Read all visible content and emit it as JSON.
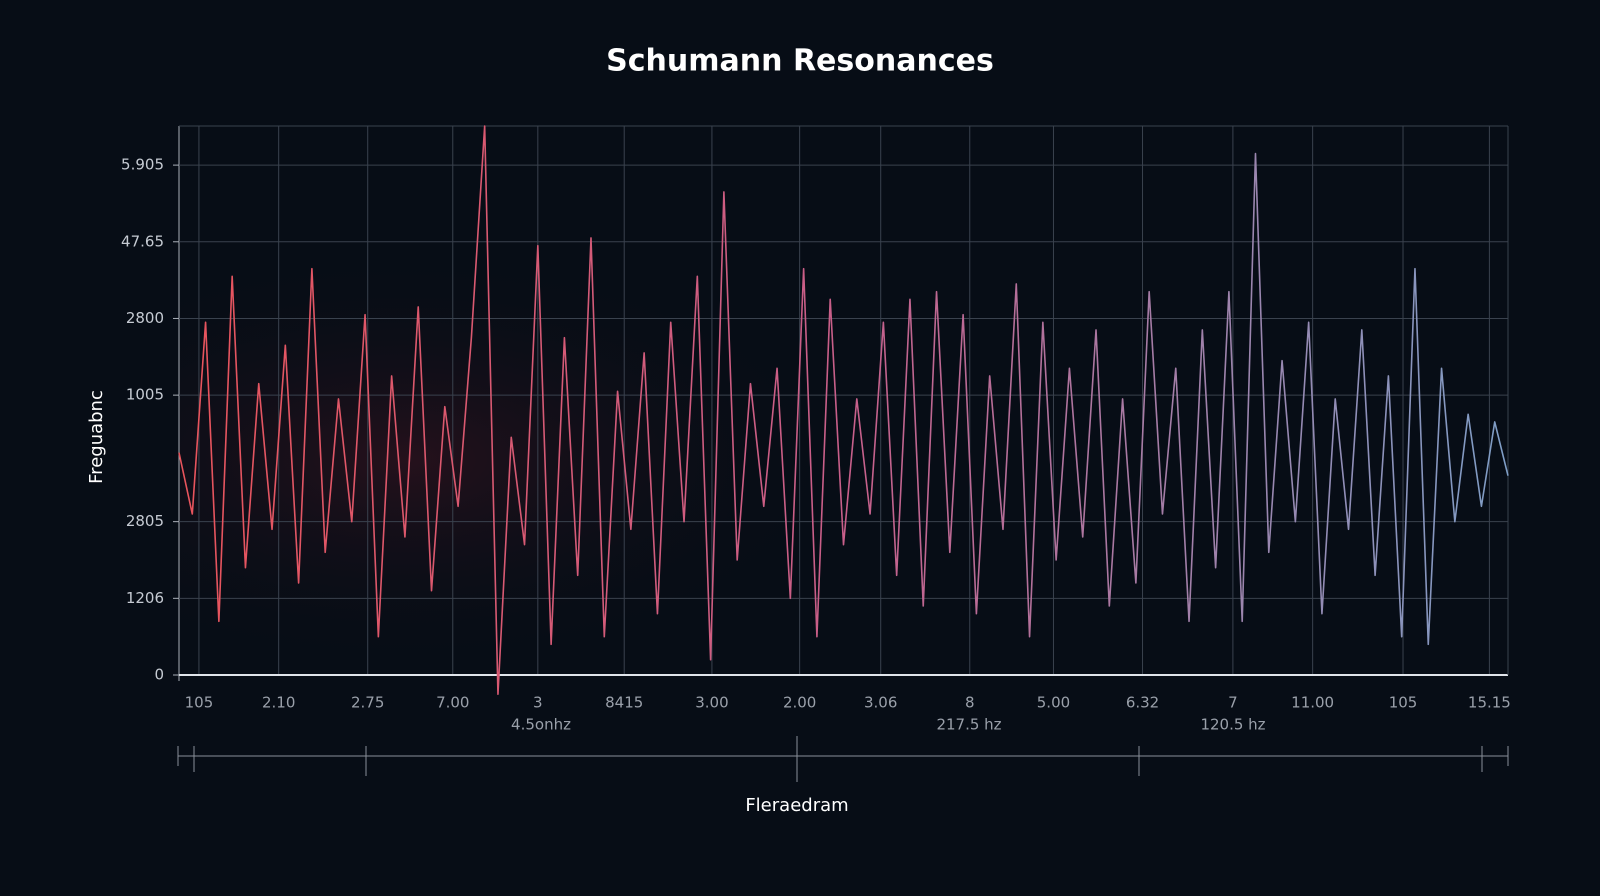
{
  "chart_data": {
    "type": "line",
    "title": "Schumann Resonances",
    "y_label": "Freguabnc",
    "x_label": "Fleraedram",
    "annotations": [
      "4.5onhz",
      "217.5 hz",
      "120.5 hz"
    ],
    "xlim": [
      0,
      100
    ],
    "xticks": [
      {
        "value": 1.5,
        "label": "105"
      },
      {
        "value": 7.5,
        "label": "2.10"
      },
      {
        "value": 14.2,
        "label": "2.75"
      },
      {
        "value": 20.6,
        "label": "7.00"
      },
      {
        "value": 27,
        "label": "3"
      },
      {
        "value": 33.5,
        "label": "8415"
      },
      {
        "value": 40.1,
        "label": "3.00"
      },
      {
        "value": 46.7,
        "label": "2.00"
      },
      {
        "value": 52.8,
        "label": "3.06"
      },
      {
        "value": 59.5,
        "label": "8"
      },
      {
        "value": 65.8,
        "label": "5.00"
      },
      {
        "value": 72.5,
        "label": "6.32"
      },
      {
        "value": 79.3,
        "label": "7"
      },
      {
        "value": 85.3,
        "label": "11.00"
      },
      {
        "value": 92.1,
        "label": "105"
      },
      {
        "value": 98.6,
        "label": "15.15"
      }
    ],
    "ylim": [
      0,
      7.16
    ],
    "yticks": [
      0,
      {
        "value": 1,
        "label": "1206"
      },
      {
        "value": 2,
        "label": "2805"
      },
      {
        "value": 3.65,
        "label": "1005"
      },
      {
        "value": 4.65,
        "label": "2800"
      },
      {
        "value": 5.65,
        "label": "47.65"
      },
      {
        "value": 6.65,
        "label": "5.905"
      }
    ],
    "grid": true,
    "gradient": [
      "#e8545c",
      "#c85f8a",
      "#7f9ec6"
    ],
    "x": [
      0,
      1,
      2,
      3,
      4,
      5,
      6,
      7,
      8,
      9,
      10,
      11,
      12,
      13,
      14,
      15,
      16,
      17,
      18,
      19,
      20,
      21,
      22,
      23,
      24,
      25,
      26,
      27,
      28,
      29,
      30,
      31,
      32,
      33,
      34,
      35,
      36,
      37,
      38,
      39,
      40,
      41,
      42,
      43,
      44,
      45,
      46,
      47,
      48,
      49,
      50,
      51,
      52,
      53,
      54,
      55,
      56,
      57,
      58,
      59,
      60,
      61,
      62,
      63,
      64,
      65,
      66,
      67,
      68,
      69,
      70,
      71,
      72,
      73,
      74,
      75,
      76,
      77,
      78,
      79,
      80,
      81,
      82,
      83,
      84,
      85,
      86,
      87,
      88,
      89,
      90,
      91,
      92,
      93,
      94,
      95,
      96,
      97,
      98,
      99,
      100
    ],
    "values": [
      2.9,
      2.1,
      4.6,
      0.7,
      5.2,
      1.4,
      3.8,
      1.9,
      4.3,
      1.2,
      5.3,
      1.6,
      3.6,
      2.0,
      4.7,
      0.5,
      3.9,
      1.8,
      4.8,
      1.1,
      3.5,
      2.2,
      4.4,
      7.16,
      -0.25,
      3.1,
      1.7,
      5.6,
      0.4,
      4.4,
      1.3,
      5.7,
      0.5,
      3.7,
      1.9,
      4.2,
      0.8,
      4.6,
      2.0,
      5.2,
      0.2,
      6.3,
      1.5,
      3.8,
      2.2,
      4.0,
      1.0,
      5.3,
      0.5,
      4.9,
      1.7,
      3.6,
      2.1,
      4.6,
      1.3,
      4.9,
      0.9,
      5.0,
      1.6,
      4.7,
      0.8,
      3.9,
      1.9,
      5.1,
      0.5,
      4.6,
      1.5,
      4.0,
      1.8,
      4.5,
      0.9,
      3.6,
      1.2,
      5.0,
      2.1,
      4.0,
      0.7,
      4.5,
      1.4,
      5.0,
      0.7,
      6.8,
      1.6,
      4.1,
      2.0,
      4.6,
      0.8,
      3.6,
      1.9,
      4.5,
      1.3,
      3.9,
      0.5,
      5.3,
      0.4,
      4.0,
      2.0,
      3.4,
      2.2,
      3.3,
      2.6
    ]
  }
}
